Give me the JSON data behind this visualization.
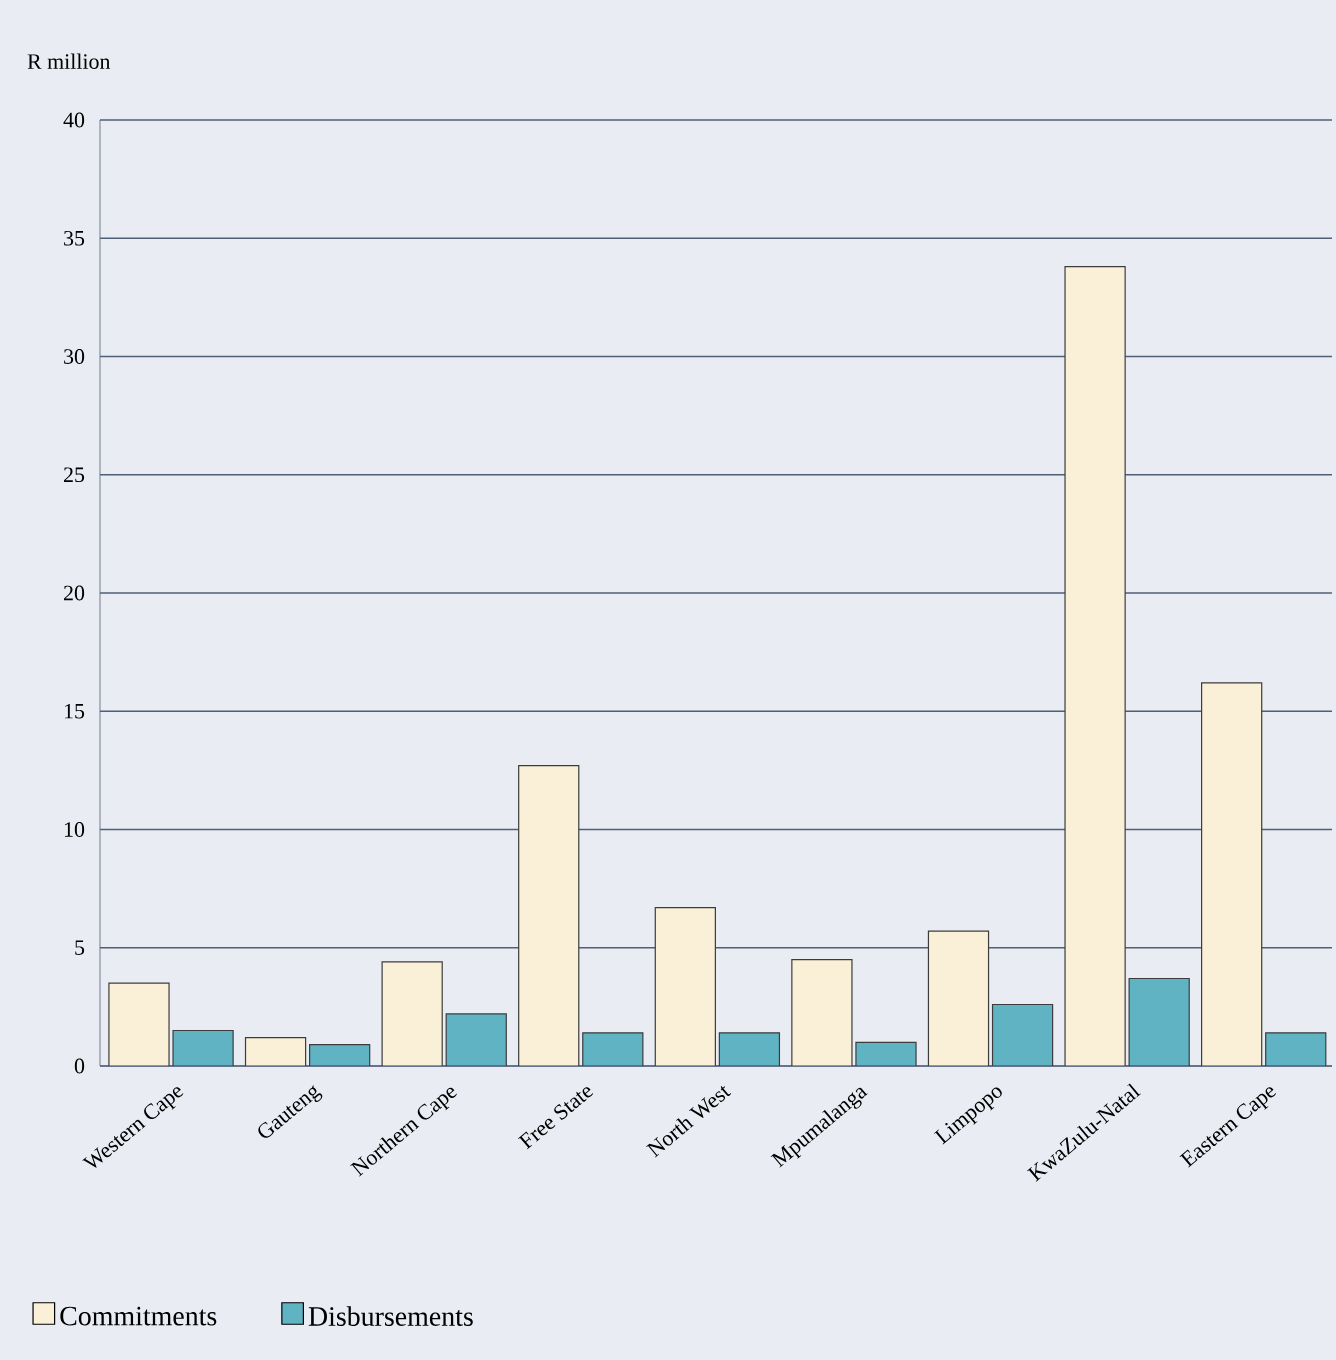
{
  "chart_data": {
    "type": "bar",
    "ylabel": "R million",
    "categories": [
      "Western Cape",
      "Gauteng",
      "Northern Cape",
      "Free State",
      "North West",
      "Mpumalanga",
      "Limpopo",
      "KwaZulu-Natal",
      "Eastern Cape"
    ],
    "series": [
      {
        "name": "Commitments",
        "color": "#faf0d7",
        "values": [
          3.5,
          1.2,
          4.4,
          12.7,
          6.7,
          4.5,
          5.7,
          33.8,
          16.2
        ]
      },
      {
        "name": "Disbursements",
        "color": "#5fb3c3",
        "values": [
          1.5,
          0.9,
          2.2,
          1.4,
          1.4,
          1.0,
          2.6,
          3.7,
          1.4
        ]
      }
    ],
    "ylim": [
      0,
      40
    ],
    "yticks": [
      0,
      5,
      10,
      15,
      20,
      25,
      30,
      35,
      40
    ],
    "grid": "y",
    "legend": "bottom left"
  }
}
